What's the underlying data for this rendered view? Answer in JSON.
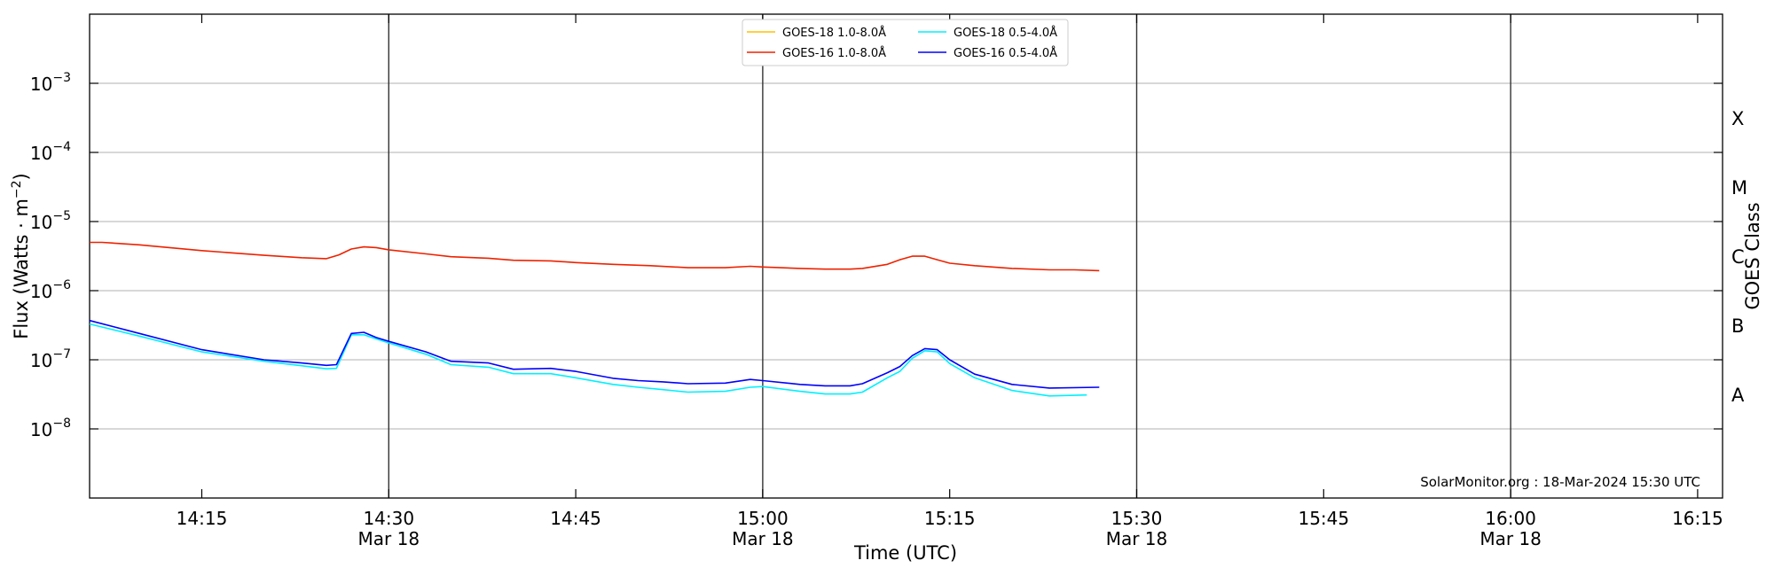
{
  "chart_data": {
    "type": "line",
    "xlabel": "Time (UTC)",
    "ylabel": "Flux (Watts · m",
    "ylabel_sup": "−2",
    "ylabel_close": ")",
    "right_axis_label": "GOES Class",
    "y_scale": "log",
    "ylim": [
      -9,
      -2
    ],
    "xlim": [
      "14:06",
      "16:17"
    ],
    "x_ticks": [
      {
        "t": "14:15",
        "label": "14:15",
        "date": ""
      },
      {
        "t": "14:30",
        "label": "14:30",
        "date": "Mar 18"
      },
      {
        "t": "14:45",
        "label": "14:45",
        "date": ""
      },
      {
        "t": "15:00",
        "label": "15:00",
        "date": "Mar 18"
      },
      {
        "t": "15:15",
        "label": "15:15",
        "date": ""
      },
      {
        "t": "15:30",
        "label": "15:30",
        "date": "Mar 18"
      },
      {
        "t": "15:45",
        "label": "15:45",
        "date": ""
      },
      {
        "t": "16:00",
        "label": "16:00",
        "date": "Mar 18"
      },
      {
        "t": "16:15",
        "label": "16:15",
        "date": ""
      }
    ],
    "y_ticks": [
      {
        "exp": -8,
        "base": "10",
        "sup": "−8"
      },
      {
        "exp": -7,
        "base": "10",
        "sup": "−7"
      },
      {
        "exp": -6,
        "base": "10",
        "sup": "−6"
      },
      {
        "exp": -5,
        "base": "10",
        "sup": "−5"
      },
      {
        "exp": -4,
        "base": "10",
        "sup": "−4"
      },
      {
        "exp": -3,
        "base": "10",
        "sup": "−3"
      }
    ],
    "goes_classes": [
      {
        "label": "A",
        "exp": -7.5
      },
      {
        "label": "B",
        "exp": -6.5
      },
      {
        "label": "C",
        "exp": -5.5
      },
      {
        "label": "M",
        "exp": -4.5
      },
      {
        "label": "X",
        "exp": -3.5
      }
    ],
    "vertical_lines": [
      "14:30",
      "15:00",
      "15:30",
      "16:00"
    ],
    "grid": "horizontal",
    "legend_position": "top-center",
    "credit": "SolarMonitor.org : 18-Mar-2024 15:30 UTC",
    "series": [
      {
        "name": "GOES-18 1.0-8.0Å",
        "color": "#ffc000",
        "x": [],
        "y": []
      },
      {
        "name": "GOES-16 1.0-8.0Å",
        "color": "#ee2200",
        "x": [
          "14:06",
          "14:07",
          "14:10",
          "14:15",
          "14:20",
          "14:23",
          "14:25",
          "14:26",
          "14:27",
          "14:28",
          "14:29",
          "14:30",
          "14:33",
          "14:35",
          "14:38",
          "14:40",
          "14:43",
          "14:45",
          "14:48",
          "14:51",
          "14:54",
          "14:57",
          "14:59",
          "15:00",
          "15:03",
          "15:05",
          "15:07",
          "15:08",
          "15:10",
          "15:11",
          "15:12",
          "15:13",
          "15:14",
          "15:15",
          "15:17",
          "15:20",
          "15:23",
          "15:25",
          "15:27"
        ],
        "y": [
          5e-06,
          5e-06,
          4.6e-06,
          3.8e-06,
          3.25e-06,
          3e-06,
          2.9e-06,
          3.3e-06,
          4e-06,
          4.3e-06,
          4.2e-06,
          3.9e-06,
          3.4e-06,
          3.1e-06,
          2.95e-06,
          2.75e-06,
          2.7e-06,
          2.55e-06,
          2.4e-06,
          2.3e-06,
          2.15e-06,
          2.15e-06,
          2.25e-06,
          2.2e-06,
          2.1e-06,
          2.05e-06,
          2.05e-06,
          2.1e-06,
          2.4e-06,
          2.8e-06,
          3.15e-06,
          3.15e-06,
          2.8e-06,
          2.5e-06,
          2.3e-06,
          2.1e-06,
          2e-06,
          2e-06,
          1.95e-06
        ]
      },
      {
        "name": "GOES-18 0.5-4.0Å",
        "color": "#00f0ff",
        "x": [
          "14:06",
          "14:10",
          "14:15",
          "14:20",
          "14:23",
          "14:25",
          "14:25.8",
          "14:27",
          "14:28",
          "14:29",
          "14:30",
          "14:33",
          "14:35",
          "14:38",
          "14:40",
          "14:43",
          "14:45",
          "14:48",
          "14:50",
          "14:52",
          "14:54",
          "14:57",
          "14:59",
          "15:00",
          "15:03",
          "15:05",
          "15:07",
          "15:08",
          "15:10",
          "15:11",
          "15:12",
          "15:13",
          "15:14",
          "15:15",
          "15:17",
          "15:20",
          "15:23",
          "15:26"
        ],
        "y": [
          3.3e-07,
          2.2e-07,
          1.3e-07,
          9.5e-08,
          8.2e-08,
          7.4e-08,
          7.5e-08,
          2.3e-07,
          2.3e-07,
          2e-07,
          1.75e-07,
          1.2e-07,
          8.5e-08,
          7.8e-08,
          6.3e-08,
          6.3e-08,
          5.5e-08,
          4.4e-08,
          4e-08,
          3.7e-08,
          3.4e-08,
          3.5e-08,
          4e-08,
          4.1e-08,
          3.5e-08,
          3.2e-08,
          3.2e-08,
          3.4e-08,
          5.5e-08,
          6.8e-08,
          1.05e-07,
          1.35e-07,
          1.3e-07,
          8.8e-08,
          5.5e-08,
          3.6e-08,
          3e-08,
          3.1e-08
        ]
      },
      {
        "name": "GOES-16 0.5-4.0Å",
        "color": "#0000ff",
        "x": [
          "14:06",
          "14:10",
          "14:15",
          "14:20",
          "14:23",
          "14:25",
          "14:25.8",
          "14:27",
          "14:28",
          "14:29",
          "14:30",
          "14:33",
          "14:35",
          "14:38",
          "14:40",
          "14:43",
          "14:45",
          "14:48",
          "14:50",
          "14:52",
          "14:54",
          "14:57",
          "14:59",
          "15:00",
          "15:03",
          "15:05",
          "15:07",
          "15:08",
          "15:10",
          "15:11",
          "15:12",
          "15:13",
          "15:14",
          "15:15",
          "15:17",
          "15:20",
          "15:23",
          "15:27"
        ],
        "y": [
          3.7e-07,
          2.4e-07,
          1.4e-07,
          1e-07,
          9e-08,
          8.3e-08,
          8.5e-08,
          2.4e-07,
          2.5e-07,
          2.1e-07,
          1.85e-07,
          1.3e-07,
          9.5e-08,
          9e-08,
          7.3e-08,
          7.5e-08,
          6.8e-08,
          5.4e-08,
          5e-08,
          4.8e-08,
          4.5e-08,
          4.6e-08,
          5.2e-08,
          5e-08,
          4.4e-08,
          4.2e-08,
          4.2e-08,
          4.5e-08,
          6.5e-08,
          8e-08,
          1.15e-07,
          1.45e-07,
          1.4e-07,
          1e-07,
          6.2e-08,
          4.4e-08,
          3.9e-08,
          4e-08
        ]
      }
    ]
  }
}
